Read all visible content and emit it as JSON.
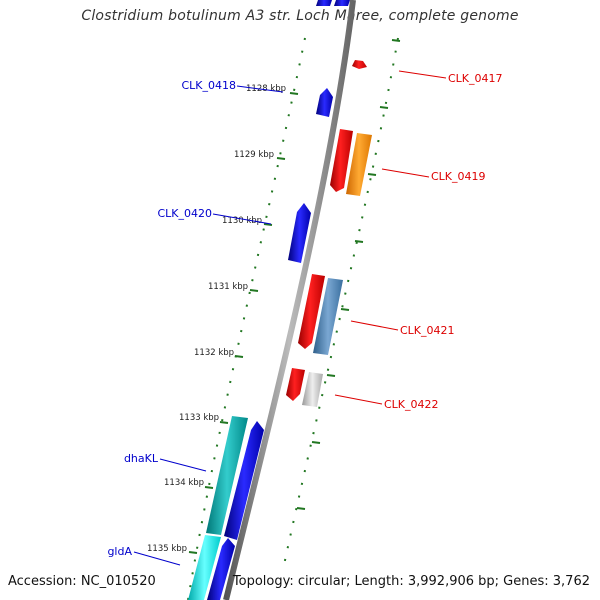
{
  "title": "Clostridium botulinum A3 str. Loch Maree, complete genome",
  "accession": "Accession: NC_010520",
  "topology": "Topology: circular; Length: 3,992,906 bp; Genes: 3,762",
  "ticks": [
    "1128 kbp",
    "1129 kbp",
    "1130 kbp",
    "1131 kbp",
    "1132 kbp",
    "1133 kbp",
    "1134 kbp",
    "1135 kbp"
  ],
  "genes": [
    {
      "label": "CLK_0417",
      "strand": "reverse",
      "color": "#dd0000"
    },
    {
      "label": "CLK_0418",
      "strand": "forward",
      "color": "#0000cc"
    },
    {
      "label": "CLK_0419",
      "strand": "reverse",
      "color": "#dd0000"
    },
    {
      "label": "CLK_0420",
      "strand": "forward",
      "color": "#0000cc"
    },
    {
      "label": "CLK_0421",
      "strand": "reverse",
      "color": "#dd0000"
    },
    {
      "label": "CLK_0422",
      "strand": "reverse",
      "color": "#dd0000"
    },
    {
      "label": "dhaKL",
      "strand": "forward",
      "color": "#0000cc"
    },
    {
      "label": "gldA",
      "strand": "forward",
      "color": "#0000cc"
    }
  ],
  "colors": {
    "forward": "#0000cc",
    "reverse": "#dd0000",
    "backbone": "#888888",
    "ticks": "#227722",
    "orange_track": "#ff8800",
    "steelblue_track": "#4682b4",
    "gray_track": "#bbbbbb",
    "cyan_track": "#00bbbb"
  }
}
